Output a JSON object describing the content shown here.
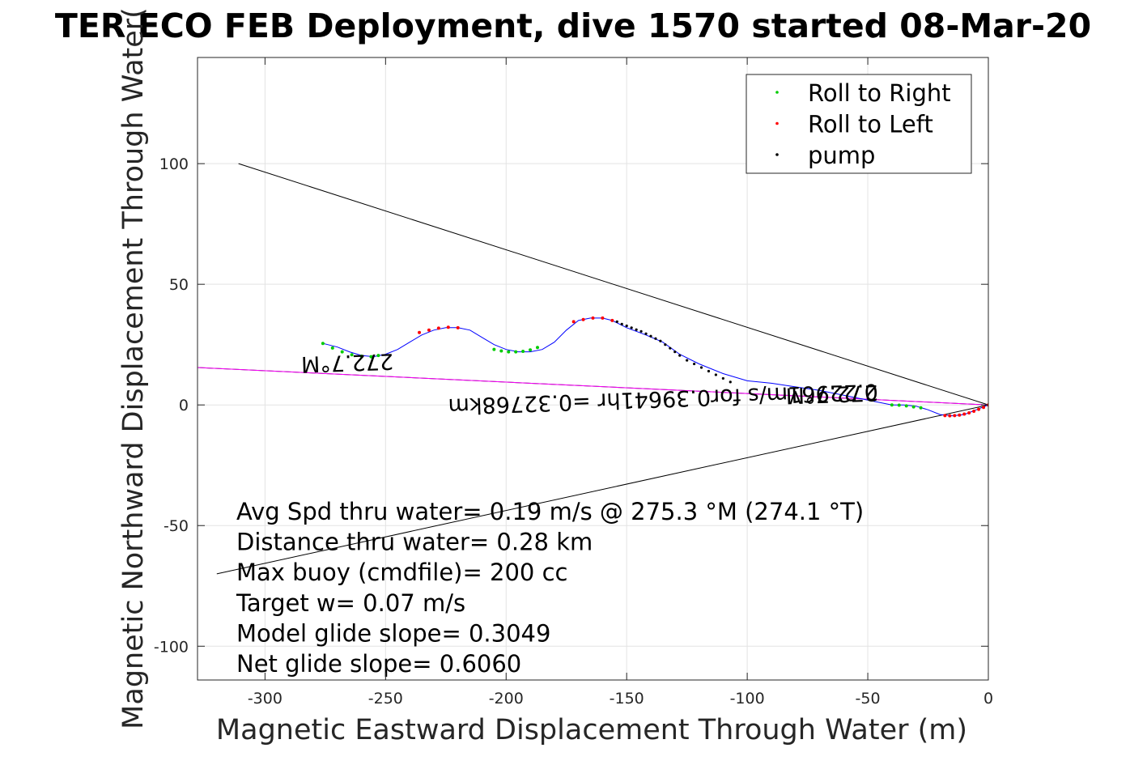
{
  "chart_data": {
    "type": "scatter",
    "title": "TER ECO FEB Deployment, dive 1570 started 08-Mar-20",
    "xlabel": "Magnetic Eastward Displacement Through Water (m)",
    "ylabel": "Magnetic Northward Displacement Through Water(",
    "xlim": [
      -328,
      0
    ],
    "ylim": [
      -114,
      144
    ],
    "xticks": [
      -300,
      -250,
      -200,
      -150,
      -100,
      -50,
      0
    ],
    "yticks": [
      -100,
      -50,
      0,
      50,
      100
    ],
    "xtick_labels": [
      "-300",
      "-250",
      "-200",
      "-150",
      "-100",
      "-50",
      "0"
    ],
    "ytick_labels": [
      "-100",
      "-50",
      "0",
      "50",
      "100"
    ],
    "grid": true,
    "legend_position": "top-right",
    "legend": [
      {
        "label": "Roll to Right",
        "color": "#00cc00"
      },
      {
        "label": "Roll to Left",
        "color": "#ff0000"
      },
      {
        "label": "pump",
        "color": "#000000"
      }
    ],
    "track": {
      "color": "#0000ff",
      "x": [
        0,
        -5,
        -10,
        -15,
        -20,
        -25,
        -30,
        -35,
        -40,
        -50,
        -60,
        -70,
        -80,
        -90,
        -100,
        -110,
        -120,
        -128,
        -135,
        -142,
        -150,
        -156,
        -160,
        -165,
        -170,
        -175,
        -180,
        -185,
        -190,
        -195,
        -200,
        -205,
        -210,
        -215,
        -220,
        -225,
        -230,
        -235,
        -240,
        -245,
        -250,
        -255,
        -260,
        -265,
        -270,
        -276
      ],
      "y": [
        0,
        -2,
        -4,
        -4.5,
        -4,
        -2,
        -0.5,
        0,
        0,
        2,
        4,
        6,
        7.5,
        9,
        10,
        13,
        17,
        21,
        26,
        29,
        32,
        35,
        36,
        36,
        35,
        31,
        26,
        23,
        22,
        22,
        23,
        25,
        28,
        31,
        32,
        32,
        31,
        29,
        26,
        23,
        21,
        20,
        20.5,
        22,
        24,
        25.5
      ]
    },
    "roll_right": {
      "x": [
        -28,
        -31,
        -34,
        -37,
        -40,
        -187,
        -190,
        -193,
        -196,
        -199,
        -202,
        -205,
        -253,
        -256,
        -260,
        -264,
        -268,
        -272,
        -276
      ],
      "y": [
        -1.2,
        -0.8,
        -0.4,
        -0.1,
        0,
        23.8,
        22.8,
        22.2,
        22,
        22,
        22.4,
        23,
        20.5,
        20,
        20.2,
        20.8,
        22,
        23.6,
        25.5
      ]
    },
    "roll_left": {
      "x": [
        0,
        -2,
        -4,
        -6,
        -8,
        -10,
        -12,
        -14,
        -16,
        -18,
        -156,
        -160,
        -164,
        -168,
        -172,
        -220,
        -224,
        -228,
        -232,
        -236
      ],
      "y": [
        0,
        -1,
        -1.8,
        -2.6,
        -3.3,
        -3.8,
        -4.2,
        -4.4,
        -4.5,
        -4.4,
        35,
        36,
        36,
        35.4,
        34.5,
        32,
        32.2,
        31.8,
        31,
        30
      ]
    },
    "pump": {
      "x": [
        -107,
        -110,
        -113,
        -116,
        -119,
        -122,
        -125,
        -128,
        -130,
        -132,
        -134,
        -136,
        -138,
        -140,
        -142,
        -144,
        -146,
        -148,
        -150,
        -152,
        -154
      ],
      "y": [
        9.5,
        11,
        12.5,
        14,
        15.5,
        17,
        18.5,
        20.5,
        22,
        23.5,
        25,
        26.5,
        27.5,
        28.5,
        29.5,
        30.5,
        31.2,
        32,
        32.8,
        33.5,
        34.5
      ]
    },
    "lines": [
      {
        "name": "upper envelope",
        "color": "#000000",
        "x": [
          -311,
          0
        ],
        "y": [
          100,
          0
        ]
      },
      {
        "name": "lower envelope",
        "color": "#000000",
        "x": [
          -320,
          0
        ],
        "y": [
          -70,
          0
        ]
      },
      {
        "name": "heading black",
        "color": "#000000",
        "x": [
          -328,
          0
        ],
        "y": [
          15.5,
          0
        ]
      },
      {
        "name": "heading magenta",
        "color": "#ff00ff",
        "x": [
          -328,
          0
        ],
        "y": [
          15.5,
          0
        ]
      }
    ],
    "annotations_rotated": [
      {
        "text": "272.7°M",
        "x": -266,
        "y": 20.5
      },
      {
        "text": "272.7°M",
        "x": -65,
        "y": 7.5
      },
      {
        "text": "0.22961m/s for0.39641hr =0.32768km",
        "x": -135,
        "y": 5.5
      }
    ],
    "stats": [
      "Avg Spd thru water=  0.19 m/s @ 275.3 °M (274.1 °T)",
      "Distance thru water=  0.28 km",
      "Max buoy (cmdfile)= 200 cc",
      "Target w= 0.07 m/s",
      "Model glide slope= 0.3049",
      "Net glide slope= 0.6060"
    ]
  }
}
